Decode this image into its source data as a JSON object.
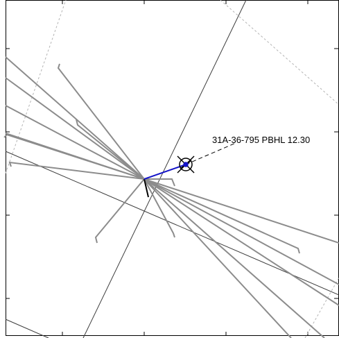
{
  "well_label": "31A-36-795 PBHL 12.30",
  "colors": {
    "background": "#ffffff",
    "frame": "#000000",
    "grid_dashed": "#b4b4b4",
    "section_lines": "#3c3c3c",
    "offset_wells": "#8c8c8c",
    "planned_path": "#1414c8",
    "target_marker": "#000000"
  },
  "icons": {
    "target": "crosshair-target-icon"
  }
}
